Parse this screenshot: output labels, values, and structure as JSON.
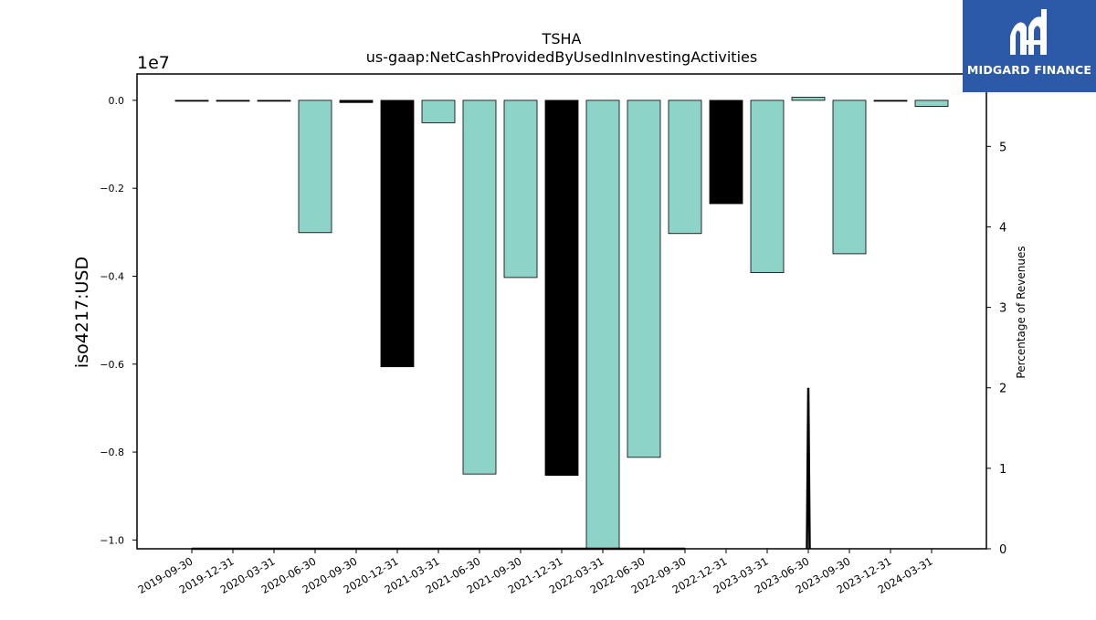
{
  "brand": {
    "name": "MIDGARD FINANCE",
    "color": "#2d5aa8",
    "icon": "midgard-logo-icon"
  },
  "chart_data": {
    "type": "bar",
    "title": "TSHA",
    "subtitle": "us-gaap:NetCashProvidedByUsedInInvestingActivities",
    "ylabel": "iso4217:USD",
    "y_scale_label": "1e7",
    "y2label": "Percentage of Revenues",
    "ylim": [
      -10200000,
      600000
    ],
    "y2lim": [
      0,
      5.9
    ],
    "yticks": [
      0.0,
      -0.2,
      -0.4,
      -0.6,
      -0.8,
      -1.0
    ],
    "ytick_labels": [
      "0.0",
      "−0.2",
      "−0.4",
      "−0.6",
      "−0.8",
      "−1.0"
    ],
    "y2ticks": [
      0,
      1,
      2,
      3,
      4,
      5,
      6
    ],
    "grid": false,
    "legend": "none",
    "categories": [
      "2019-09-30",
      "2019-12-31",
      "2020-03-31",
      "2020-06-30",
      "2020-09-30",
      "2020-12-31",
      "2021-03-31",
      "2021-06-30",
      "2021-09-30",
      "2021-12-31",
      "2022-03-31",
      "2022-06-30",
      "2022-09-30",
      "2022-12-31",
      "2023-03-31",
      "2023-06-30",
      "2023-09-30",
      "2023-12-31",
      "2024-03-31"
    ],
    "values": [
      -10000,
      -10000,
      -10000,
      -3010000,
      -50000,
      -6060000,
      -510000,
      -8500000,
      -4030000,
      -8530000,
      -10250000,
      -8120000,
      -3030000,
      -2350000,
      -3920000,
      70000,
      -3490000,
      -5000,
      -140000
    ],
    "bar_colors": [
      "#000000",
      "#000000",
      "#000000",
      "#8dd3c7",
      "#000000",
      "#000000",
      "#8dd3c7",
      "#8dd3c7",
      "#8dd3c7",
      "#000000",
      "#8dd3c7",
      "#8dd3c7",
      "#8dd3c7",
      "#000000",
      "#8dd3c7",
      "#8dd3c7",
      "#8dd3c7",
      "#000000",
      "#8dd3c7"
    ],
    "secondary_line": {
      "x": [
        "2019-09-30",
        "2019-12-31",
        "2020-03-31",
        "2020-06-30",
        "2020-09-30",
        "2020-12-31",
        "2021-03-31",
        "2021-06-30",
        "2021-09-30",
        "2021-12-31",
        "2022-03-31",
        "2022-06-30",
        "2022-09-30",
        "2022-12-31",
        "2023-03-31",
        "2023-06-30",
        "2023-09-30",
        "2023-12-31",
        "2024-03-31"
      ],
      "values": [
        0,
        0,
        0,
        0,
        0,
        0,
        0,
        0,
        0,
        0,
        0,
        0,
        0,
        null,
        null,
        2.0,
        null,
        null,
        null
      ],
      "color": "#000000"
    }
  }
}
